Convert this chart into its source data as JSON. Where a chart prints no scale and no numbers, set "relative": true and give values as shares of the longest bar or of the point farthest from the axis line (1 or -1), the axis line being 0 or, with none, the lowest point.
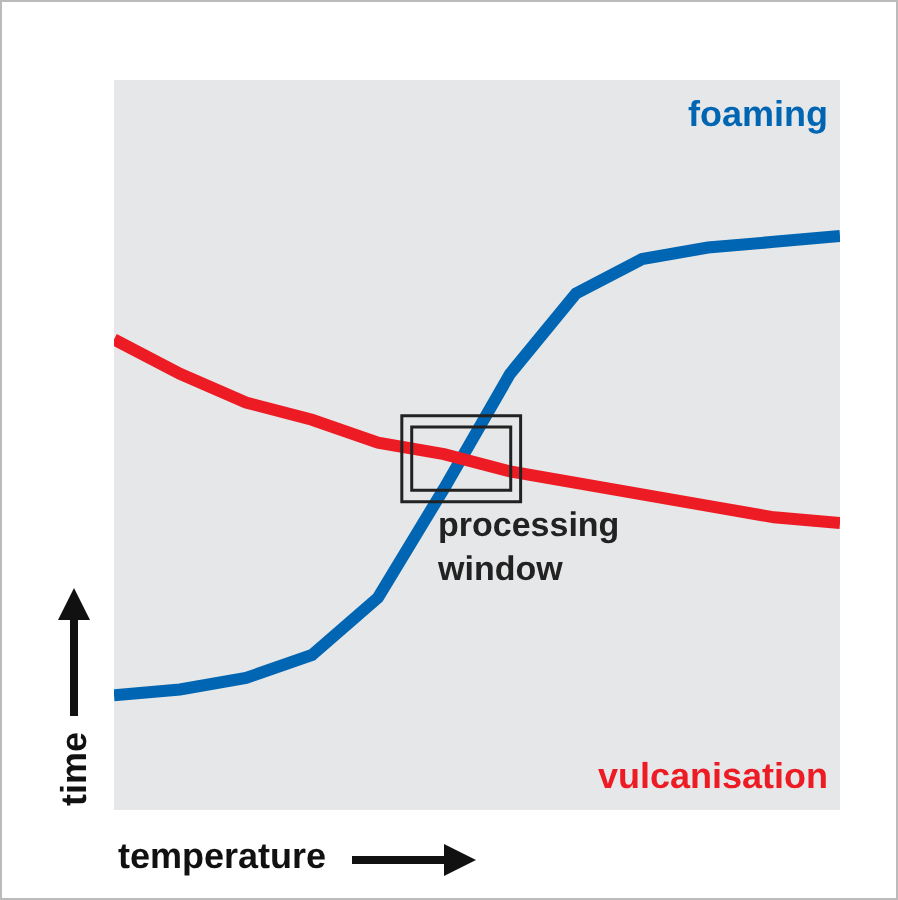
{
  "chart_data": {
    "type": "line",
    "relative": true,
    "xlabel": "temperature",
    "ylabel": "time",
    "categories": [
      null,
      null,
      null,
      null,
      null,
      null,
      null,
      null,
      null,
      null,
      null,
      null
    ],
    "series": [
      {
        "name": "foaming",
        "color": "#0066b3",
        "values": [
          0.2,
          0.21,
          0.23,
          0.27,
          0.37,
          0.56,
          0.76,
          0.9,
          0.96,
          0.98,
          0.99,
          1
        ]
      },
      {
        "name": "vulcanisation",
        "color": "#ed1c24",
        "values": [
          0.82,
          0.76,
          0.71,
          0.68,
          0.64,
          0.62,
          0.59,
          0.57,
          0.55,
          0.53,
          0.51,
          0.5
        ]
      }
    ],
    "annotations": [
      "processing window"
    ],
    "grid": false,
    "legend": false,
    "marker": "none",
    "line_style": "solid"
  }
}
